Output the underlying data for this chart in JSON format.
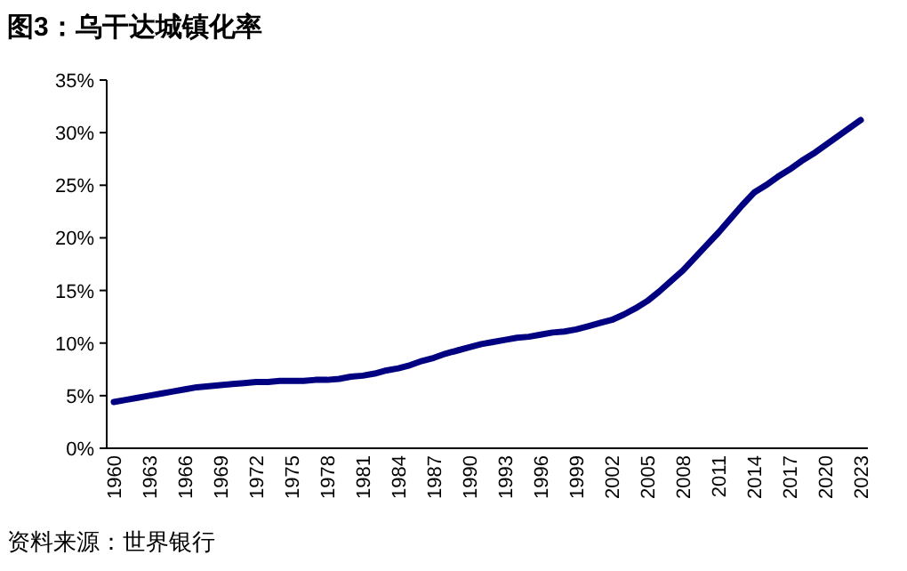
{
  "chart_data": {
    "type": "line",
    "title": "图3：乌干达城镇化率",
    "categories": [
      "1960",
      null,
      null,
      "1963",
      null,
      null,
      "1966",
      null,
      null,
      "1969",
      null,
      null,
      "1972",
      null,
      null,
      "1975",
      null,
      null,
      "1978",
      null,
      null,
      "1981",
      null,
      null,
      "1984",
      null,
      null,
      "1987",
      null,
      null,
      "1990",
      null,
      null,
      "1993",
      null,
      null,
      "1996",
      null,
      null,
      "1999",
      null,
      null,
      "2002",
      null,
      null,
      "2005",
      null,
      null,
      "2008",
      null,
      null,
      "2011",
      null,
      null,
      "2014",
      null,
      null,
      "2017",
      null,
      null,
      "2020",
      null,
      null,
      "2023"
    ],
    "series": [
      {
        "color": "#000080",
        "values": [
          4.4,
          4.6,
          4.8,
          5.0,
          5.2,
          5.4,
          5.6,
          5.8,
          5.9,
          6.0,
          6.1,
          6.2,
          6.3,
          6.3,
          6.4,
          6.4,
          6.4,
          6.5,
          6.5,
          6.6,
          6.8,
          6.9,
          7.1,
          7.4,
          7.6,
          7.9,
          8.3,
          8.6,
          9.0,
          9.3,
          9.6,
          9.9,
          10.1,
          10.3,
          10.5,
          10.6,
          10.8,
          11.0,
          11.1,
          11.3,
          11.6,
          11.9,
          12.2,
          12.7,
          13.3,
          14.0,
          14.9,
          15.9,
          16.9,
          18.1,
          19.3,
          20.5,
          21.8,
          23.1,
          24.3,
          25.0,
          25.8,
          26.5,
          27.3,
          28.0,
          28.8,
          29.6,
          30.4,
          31.2
        ]
      }
    ],
    "ylim": [
      0,
      35
    ],
    "yticks": [
      {
        "value": 0,
        "label": "0%"
      },
      {
        "value": 5,
        "label": "5%"
      },
      {
        "value": 10,
        "label": "10%"
      },
      {
        "value": 15,
        "label": "15%"
      },
      {
        "value": 20,
        "label": "20%"
      },
      {
        "value": 25,
        "label": "25%"
      },
      {
        "value": 30,
        "label": "30%"
      },
      {
        "value": 35,
        "label": "35%"
      }
    ],
    "grid": false,
    "marker": "none",
    "line_style": "solid",
    "annotations": [
      "资料来源：世界银行"
    ]
  }
}
